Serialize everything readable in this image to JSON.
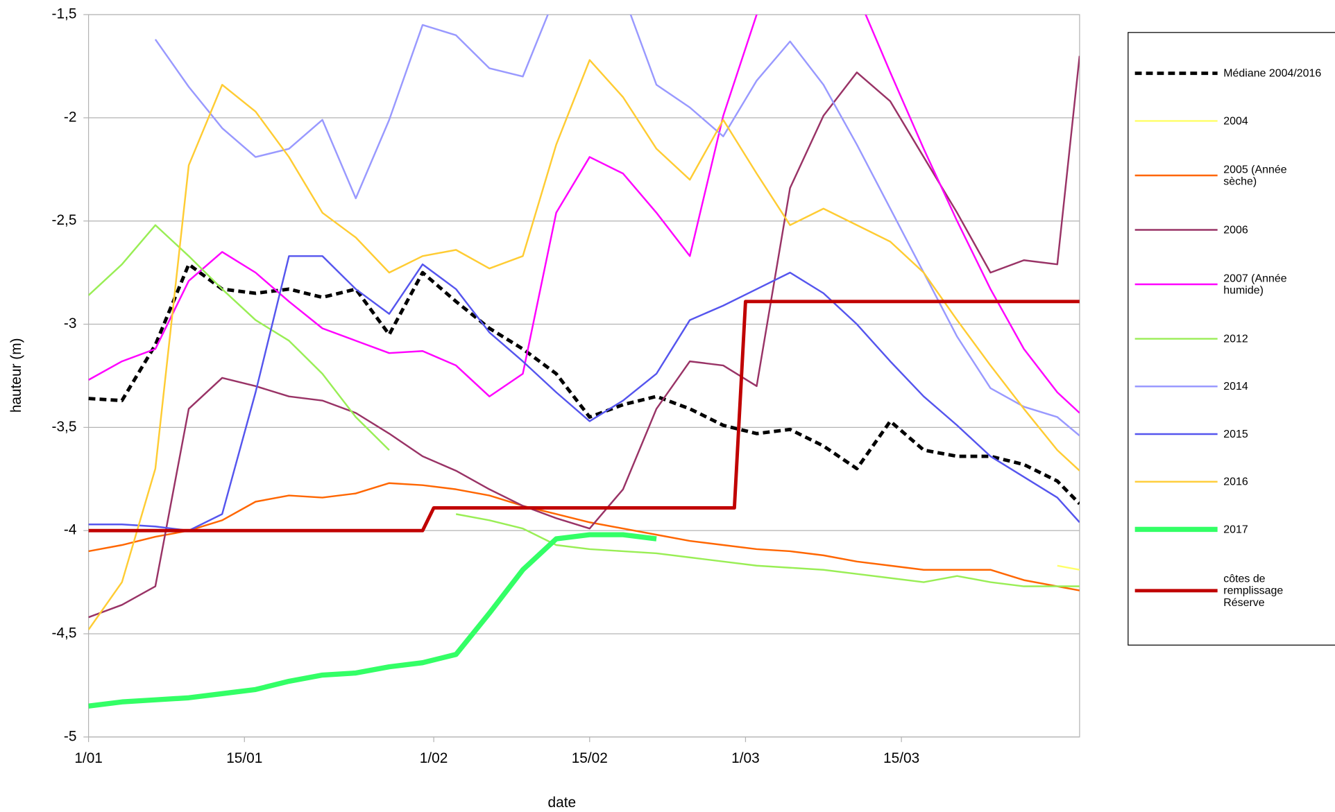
{
  "chart_data": {
    "type": "line",
    "xlabel": "date",
    "ylabel": "hauteur (m)",
    "x": [
      1,
      4,
      7,
      10,
      13,
      16,
      19,
      22,
      25,
      28,
      31,
      34,
      37,
      40,
      43,
      46,
      49,
      52,
      55,
      58,
      61,
      64,
      67,
      70,
      73,
      76,
      79,
      82,
      85,
      88,
      90
    ],
    "xlim": [
      1,
      90
    ],
    "xticks": [
      {
        "value": 1,
        "label": "1/01"
      },
      {
        "value": 15,
        "label": "15/01"
      },
      {
        "value": 32,
        "label": "1/02"
      },
      {
        "value": 46,
        "label": "15/02"
      },
      {
        "value": 60,
        "label": "1/03"
      },
      {
        "value": 74,
        "label": "15/03"
      }
    ],
    "ylim": [
      -5,
      -1.5
    ],
    "yticks": [
      {
        "value": -5,
        "label": "-5"
      },
      {
        "value": -4.5,
        "label": "-4,5"
      },
      {
        "value": -4,
        "label": "-4"
      },
      {
        "value": -3.5,
        "label": "-3,5"
      },
      {
        "value": -3,
        "label": "-3"
      },
      {
        "value": -2.5,
        "label": "-2,5"
      },
      {
        "value": -2,
        "label": "-2"
      },
      {
        "value": -1.5,
        "label": "-1,5"
      }
    ],
    "grid": true,
    "legend": "right",
    "series": [
      {
        "name": "Médiane 2004/2016",
        "color": "#000000",
        "dashed": true,
        "linewidth": 4,
        "values": [
          -3.36,
          -3.37,
          -3.1,
          -2.71,
          -2.83,
          -2.85,
          -2.83,
          -2.87,
          -2.83,
          -3.05,
          -2.75,
          -2.89,
          -3.02,
          -3.12,
          -3.24,
          -3.45,
          -3.39,
          -3.35,
          -3.41,
          -3.49,
          -3.53,
          -3.51,
          -3.59,
          -3.7,
          -3.47,
          -3.61,
          -3.64,
          -3.64,
          -3.68,
          -3.76,
          -3.87
        ]
      },
      {
        "name": "2004",
        "color": "#ffff66",
        "linewidth": 2,
        "values": [
          null,
          null,
          null,
          null,
          null,
          null,
          null,
          null,
          null,
          null,
          null,
          null,
          null,
          null,
          null,
          null,
          null,
          null,
          null,
          null,
          null,
          null,
          null,
          null,
          null,
          null,
          null,
          null,
          null,
          -4.17,
          -4.19
        ]
      },
      {
        "name": "2005 (Année sèche)",
        "color": "#ff6600",
        "linewidth": 2,
        "values": [
          -4.1,
          -4.07,
          -4.03,
          -4.0,
          -3.95,
          -3.86,
          -3.83,
          -3.84,
          -3.82,
          -3.77,
          -3.78,
          -3.8,
          -3.83,
          -3.88,
          -3.92,
          -3.96,
          -3.99,
          -4.02,
          -4.05,
          -4.07,
          -4.09,
          -4.1,
          -4.12,
          -4.15,
          -4.17,
          -4.19,
          -4.19,
          -4.19,
          -4.24,
          -4.27,
          -4.29
        ]
      },
      {
        "name": "2006",
        "color": "#993366",
        "linewidth": 2,
        "values": [
          -4.42,
          -4.36,
          -4.27,
          -3.41,
          -3.26,
          -3.3,
          -3.35,
          -3.37,
          -3.43,
          -3.53,
          -3.64,
          -3.71,
          -3.8,
          -3.88,
          -3.94,
          -3.99,
          -3.8,
          -3.41,
          -3.18,
          -3.2,
          -3.3,
          -2.34,
          -1.99,
          -1.78,
          -1.92,
          -2.19,
          -2.46,
          -2.75,
          -2.69,
          -2.71,
          -1.7
        ]
      },
      {
        "name": "2007 (Année humide)",
        "color": "#ff00ff",
        "linewidth": 2,
        "values": [
          -3.27,
          -3.18,
          -3.12,
          -2.79,
          -2.65,
          -2.75,
          -2.89,
          -3.02,
          -3.08,
          -3.14,
          -3.13,
          -3.2,
          -3.35,
          -3.24,
          -2.46,
          -2.19,
          -2.27,
          -2.46,
          -2.67,
          -1.99,
          -1.5,
          -1.2,
          -1.1,
          -1.4,
          -1.78,
          -2.15,
          -2.5,
          -2.83,
          -3.12,
          -3.33,
          -3.43
        ]
      },
      {
        "name": "2012",
        "color": "#99ee55",
        "linewidth": 2,
        "values": [
          -2.86,
          -2.71,
          -2.52,
          -2.67,
          -2.83,
          -2.98,
          -3.08,
          -3.24,
          -3.45,
          -3.61,
          null,
          -3.92,
          -3.95,
          -3.99,
          -4.07,
          -4.09,
          -4.1,
          -4.11,
          -4.13,
          -4.15,
          -4.17,
          -4.18,
          -4.19,
          -4.21,
          -4.23,
          -4.25,
          -4.22,
          -4.25,
          -4.27,
          -4.27,
          -4.27
        ]
      },
      {
        "name": "2014",
        "color": "#9999ff",
        "linewidth": 2,
        "values": [
          null,
          null,
          -1.62,
          -1.85,
          -2.05,
          -2.19,
          -2.15,
          -2.01,
          -2.39,
          -2.01,
          -1.55,
          -1.6,
          -1.76,
          -1.8,
          -1.4,
          -1.2,
          -1.4,
          -1.84,
          -1.95,
          -2.09,
          -1.82,
          -1.63,
          -1.84,
          -2.13,
          -2.44,
          -2.75,
          -3.06,
          -3.31,
          -3.4,
          -3.45,
          -3.54
        ]
      },
      {
        "name": "2015",
        "color": "#5555ee",
        "linewidth": 2,
        "values": [
          -3.97,
          -3.97,
          -3.98,
          -4.0,
          -3.92,
          -3.33,
          -2.67,
          -2.67,
          -2.83,
          -2.95,
          -2.71,
          -2.83,
          -3.04,
          -3.18,
          -3.33,
          -3.47,
          -3.37,
          -3.24,
          -2.98,
          -2.91,
          -2.83,
          -2.75,
          -2.85,
          -3.0,
          -3.18,
          -3.35,
          -3.49,
          -3.64,
          -3.74,
          -3.84,
          -3.96
        ]
      },
      {
        "name": "2016",
        "color": "#ffcc33",
        "linewidth": 2,
        "values": [
          -4.48,
          -4.25,
          -3.7,
          -2.23,
          -1.84,
          -1.97,
          -2.19,
          -2.46,
          -2.58,
          -2.75,
          -2.67,
          -2.64,
          -2.73,
          -2.67,
          -2.13,
          -1.72,
          -1.9,
          -2.15,
          -2.3,
          -2.01,
          -2.27,
          -2.52,
          -2.44,
          -2.52,
          -2.6,
          -2.75,
          -2.98,
          -3.2,
          -3.41,
          -3.61,
          -3.71
        ]
      },
      {
        "name": "2017",
        "color": "#33ff66",
        "linewidth": 6,
        "values": [
          -4.85,
          -4.83,
          -4.82,
          -4.81,
          -4.79,
          -4.77,
          -4.73,
          -4.7,
          -4.69,
          -4.66,
          -4.64,
          -4.6,
          -4.4,
          -4.19,
          -4.04,
          -4.02,
          -4.02,
          -4.04,
          null,
          null,
          null,
          null,
          null,
          null,
          null,
          null,
          null,
          null,
          null,
          null,
          null
        ]
      },
      {
        "name": "côtes de remplissage Réserve",
        "color": "#c00000",
        "linewidth": 4,
        "x": [
          1,
          31,
          32,
          59,
          60,
          90
        ],
        "values": [
          -4,
          -4,
          -3.89,
          -3.89,
          -2.89,
          -2.89
        ]
      }
    ]
  }
}
